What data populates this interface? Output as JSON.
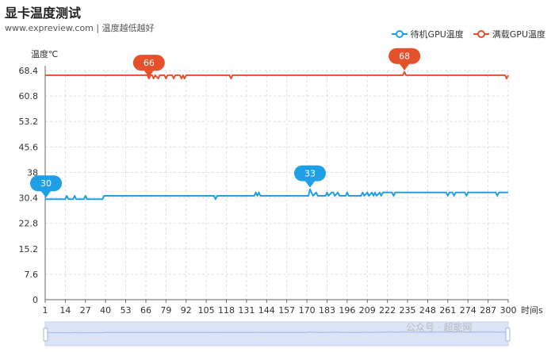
{
  "page": {
    "title": "显卡温度测试",
    "subtitle": "www.expreview.com | 温度越低越好",
    "watermark": "公众号 · 超能网"
  },
  "colors": {
    "idle": "#1fa0e6",
    "load": "#e4512b",
    "grid": "#d9dce8",
    "zoom_fill": "#dbe4f7",
    "zoom_border": "#c5d2ee"
  },
  "chart_data": {
    "type": "line",
    "ylabel": "温度℃",
    "xlabel": "时间s",
    "ylim": [
      0,
      68.4
    ],
    "yticks": [
      "0",
      "7.6",
      "15.2",
      "22.8",
      "30.4",
      "38",
      "45.6",
      "53.2",
      "60.8",
      "68.4"
    ],
    "xlim": [
      1,
      300
    ],
    "xticks": [
      "1",
      "14",
      "27",
      "40",
      "53",
      "66",
      "79",
      "92",
      "105",
      "118",
      "131",
      "144",
      "157",
      "170",
      "183",
      "196",
      "209",
      "222",
      "235",
      "248",
      "261",
      "274",
      "287",
      "300"
    ],
    "grid": true,
    "legend_position": "top-right",
    "series": [
      {
        "name": "待机GPU温度",
        "color": "#1fa0e6",
        "max_label": "33",
        "min_label": "30",
        "max_at": 172,
        "min_at": 1,
        "points": [
          [
            1,
            30
          ],
          [
            14,
            30
          ],
          [
            15,
            31
          ],
          [
            16,
            30
          ],
          [
            19,
            30
          ],
          [
            20,
            31
          ],
          [
            21,
            30
          ],
          [
            26,
            30
          ],
          [
            27,
            31
          ],
          [
            28,
            30
          ],
          [
            38,
            30
          ],
          [
            39,
            31
          ],
          [
            40,
            31
          ],
          [
            110,
            31
          ],
          [
            111,
            30
          ],
          [
            112,
            31
          ],
          [
            136,
            31
          ],
          [
            137,
            32
          ],
          [
            138,
            31
          ],
          [
            139,
            32
          ],
          [
            140,
            31
          ],
          [
            165,
            31
          ],
          [
            171,
            31
          ],
          [
            172,
            33
          ],
          [
            173,
            32
          ],
          [
            174,
            31
          ],
          [
            176,
            32
          ],
          [
            177,
            31
          ],
          [
            182,
            31
          ],
          [
            183,
            32
          ],
          [
            184,
            31
          ],
          [
            186,
            32
          ],
          [
            187,
            32
          ],
          [
            188,
            31
          ],
          [
            190,
            32
          ],
          [
            191,
            31
          ],
          [
            195,
            31
          ],
          [
            196,
            32
          ],
          [
            197,
            31
          ],
          [
            205,
            31
          ],
          [
            206,
            32
          ],
          [
            207,
            31
          ],
          [
            209,
            32
          ],
          [
            210,
            31
          ],
          [
            212,
            32
          ],
          [
            213,
            31
          ],
          [
            214,
            32
          ],
          [
            215,
            31
          ],
          [
            217,
            32
          ],
          [
            218,
            31
          ],
          [
            219,
            32
          ],
          [
            225,
            32
          ],
          [
            226,
            31
          ],
          [
            227,
            32
          ],
          [
            260,
            32
          ],
          [
            261,
            31
          ],
          [
            262,
            32
          ],
          [
            264,
            32
          ],
          [
            265,
            31
          ],
          [
            266,
            32
          ],
          [
            272,
            32
          ],
          [
            273,
            31
          ],
          [
            274,
            32
          ],
          [
            292,
            32
          ],
          [
            293,
            31
          ],
          [
            294,
            32
          ],
          [
            300,
            32
          ]
        ]
      },
      {
        "name": "满载GPU温度",
        "color": "#e4512b",
        "max_label": "68",
        "min_label": "66",
        "max_at": 233,
        "min_at": 68,
        "points": [
          [
            1,
            67
          ],
          [
            67,
            67
          ],
          [
            68,
            66
          ],
          [
            69,
            67
          ],
          [
            70,
            67
          ],
          [
            71,
            66
          ],
          [
            72,
            67
          ],
          [
            74,
            66
          ],
          [
            75,
            67
          ],
          [
            78,
            67
          ],
          [
            79,
            66
          ],
          [
            80,
            67
          ],
          [
            83,
            67
          ],
          [
            84,
            66
          ],
          [
            85,
            67
          ],
          [
            88,
            67
          ],
          [
            89,
            66
          ],
          [
            90,
            67
          ],
          [
            91,
            66
          ],
          [
            92,
            67
          ],
          [
            120,
            67
          ],
          [
            121,
            66
          ],
          [
            122,
            67
          ],
          [
            232,
            67
          ],
          [
            233,
            68
          ],
          [
            234,
            67
          ],
          [
            298,
            67
          ],
          [
            299,
            66
          ],
          [
            300,
            67
          ]
        ]
      }
    ]
  }
}
